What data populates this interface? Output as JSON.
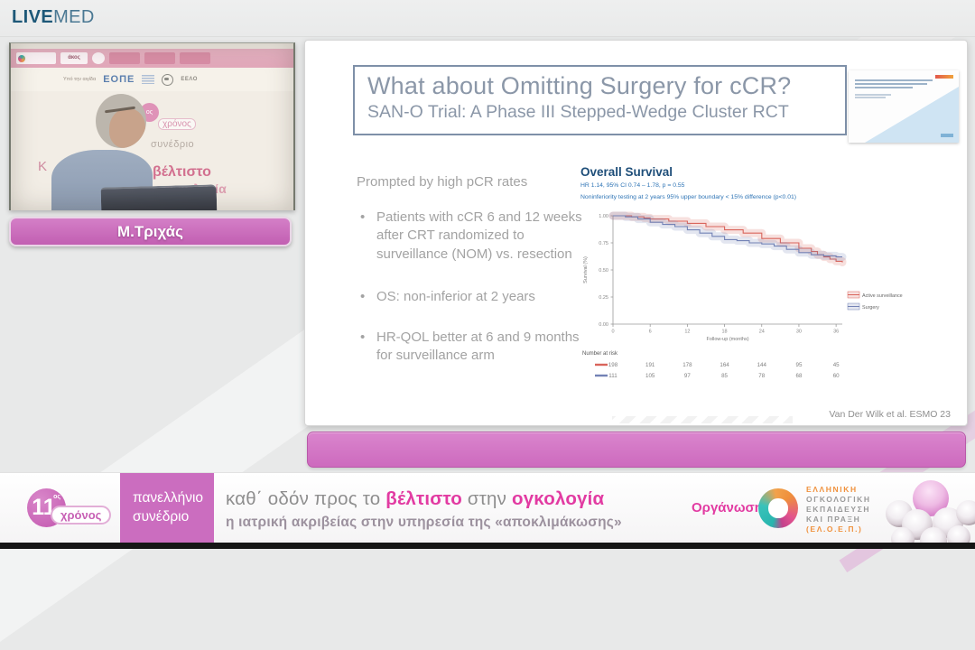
{
  "header": {
    "brand": {
      "live": "LIVE",
      "med": "MED"
    }
  },
  "video": {
    "speaker_badge": "Μ.Τριχάς",
    "backdrop": {
      "akos": "άκος",
      "auspices": "Υπό την αιγίδα",
      "eope": "ΕΟΠΕ",
      "eelo": "ΕΕΛΟ",
      "year_circle": "ος",
      "year_word": "χρόνος",
      "congress_word": "συνέδριο",
      "slogan_k": "Κ",
      "slogan_veltisto": "βέλτιστο",
      "slogan_oncology": "ογκολογία"
    }
  },
  "slide": {
    "title": "What about Omitting Surgery for cCR?",
    "subtitle": "SAN-O Trial: A Phase III Stepped-Wedge Cluster RCT",
    "intro": "Prompted by high pCR rates",
    "bullets": [
      "Patients with cCR 6 and 12 weeks after CRT randomized to surveillance (NOM) vs. resection",
      "OS: non-inferior at 2 years",
      "HR-QOL better at 6 and 9 months for surveillance arm"
    ],
    "citation": "Van Der Wilk et al. ESMO 23"
  },
  "chart_data": {
    "type": "line",
    "subtype": "kaplan-meier",
    "title": "Overall Survival",
    "subtitle_lines": [
      "HR 1.14, 95% CI 0.74 – 1.78, p = 0.55",
      "Noninferiority testing at 2 years 95% upper boundary < 15% difference (p<0.01)"
    ],
    "xlabel": "Follow-up (months)",
    "ylabel": "Survival (%)",
    "xlim": [
      0,
      37
    ],
    "ylim": [
      0,
      1
    ],
    "xticks": [
      0,
      6,
      12,
      18,
      24,
      30,
      36
    ],
    "yticks": [
      1.0,
      0.75,
      0.5,
      0.25,
      0.0
    ],
    "grid": false,
    "legend_position": "right",
    "series": [
      {
        "name": "Active surveillance",
        "color": "#d9655c",
        "band_color": "rgba(217,101,92,0.20)",
        "x": [
          0,
          3,
          5,
          6,
          9,
          12,
          15,
          18,
          21,
          24,
          27,
          30,
          32,
          33,
          34,
          35,
          36,
          37
        ],
        "y": [
          1.0,
          0.99,
          0.98,
          0.97,
          0.95,
          0.93,
          0.9,
          0.87,
          0.84,
          0.79,
          0.75,
          0.7,
          0.67,
          0.64,
          0.62,
          0.6,
          0.58,
          0.57
        ]
      },
      {
        "name": "Surgery",
        "color": "#7382b5",
        "band_color": "rgba(115,130,181,0.20)",
        "x": [
          0,
          2,
          4,
          6,
          8,
          10,
          12,
          14,
          16,
          18,
          20,
          22,
          24,
          26,
          28,
          30,
          32,
          34,
          36,
          37
        ],
        "y": [
          1.0,
          0.99,
          0.97,
          0.94,
          0.92,
          0.9,
          0.87,
          0.84,
          0.81,
          0.78,
          0.77,
          0.75,
          0.74,
          0.72,
          0.69,
          0.66,
          0.64,
          0.63,
          0.62,
          0.62
        ]
      }
    ],
    "number_at_risk": {
      "label": "Number at risk",
      "x": [
        0,
        6,
        12,
        18,
        24,
        30,
        36
      ],
      "rows": [
        {
          "series": "Active surveillance",
          "color": "#d9655c",
          "values": [
            198,
            191,
            178,
            164,
            144,
            95,
            45
          ]
        },
        {
          "series": "Surgery",
          "color": "#7382b5",
          "values": [
            111,
            105,
            97,
            85,
            78,
            68,
            60
          ]
        }
      ]
    }
  },
  "footer": {
    "logo": {
      "number": "11",
      "suffix": "ος",
      "word": "χρόνος"
    },
    "congress": {
      "line1": "πανελλήνιο",
      "line2": "συνέδριο"
    },
    "slogan": {
      "gray1": "καθ΄ οδόν προς το ",
      "pink1": "βέλτιστο",
      "gray2": " στην ",
      "pink2": "ογκολογία",
      "line2": "η ιατρική ακριβείας στην υπηρεσία της «αποκλιμάκωσης»"
    },
    "organizer": {
      "label": "Οργάνωση:",
      "lines": [
        "ΕΛΛΗΝΙΚΗ",
        "ΟΓΚΟΛΟΓΙΚΗ",
        "ΕΚΠΑΙΔΕΥΣΗ",
        "ΚΑΙ ΠΡΑΞΗ",
        "(ΕΛ.Ο.Ε.Π.)"
      ]
    }
  }
}
